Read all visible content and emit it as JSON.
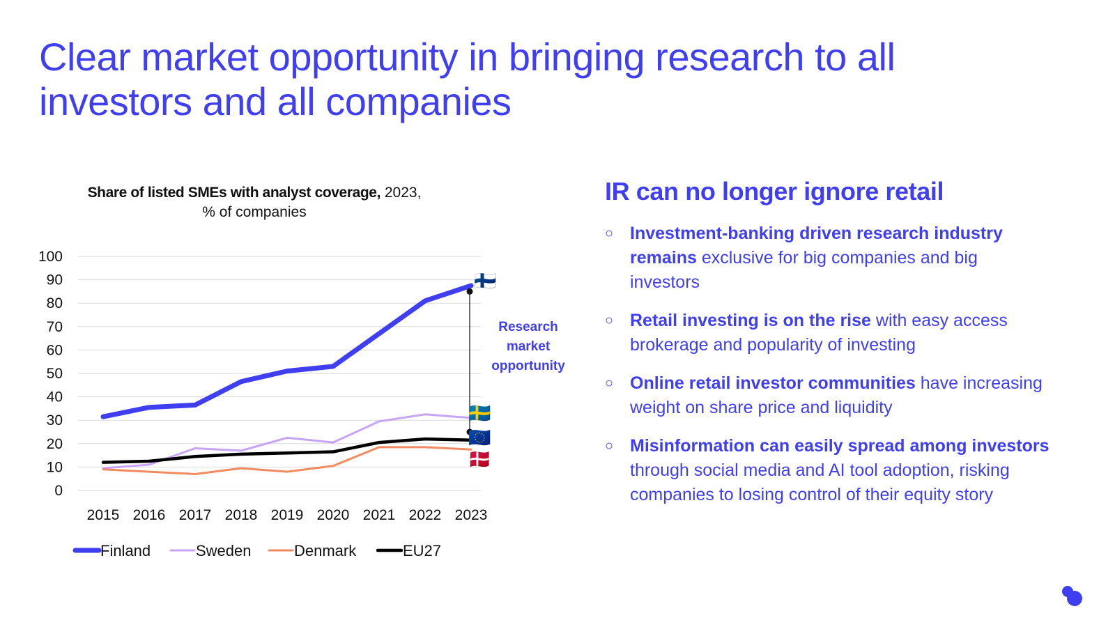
{
  "page": {
    "title": "Clear market opportunity in bringing research to all investors and all companies"
  },
  "chart": {
    "title_bold": "Share of listed SMEs with analyst coverage,",
    "title_regular": " 2023,",
    "subtitle": "% of companies",
    "annotation": [
      "Research",
      "market",
      "opportunity"
    ],
    "flags": {
      "Finland": "🇫🇮",
      "Sweden": "🇸🇪",
      "EU27": "🇪🇺",
      "Denmark": "🇩🇰"
    }
  },
  "chart_data": {
    "type": "line",
    "title": "Share of listed SMEs with analyst coverage, 2023, % of companies",
    "x": [
      "2015",
      "2016",
      "2017",
      "2018",
      "2019",
      "2020",
      "2021",
      "2022",
      "2023"
    ],
    "ylim": [
      0,
      100
    ],
    "yticks": [
      0,
      10,
      20,
      30,
      40,
      50,
      60,
      70,
      80,
      90,
      100
    ],
    "grid": true,
    "legend_position": "bottom",
    "series": [
      {
        "name": "Finland",
        "color": "#3f3ff0",
        "width": "thick",
        "values": [
          31.5,
          35.5,
          36.5,
          46.5,
          51,
          53,
          67,
          81,
          87.5
        ]
      },
      {
        "name": "Sweden",
        "color": "#c7a4f5",
        "width": "thin",
        "values": [
          9.5,
          11,
          18,
          17,
          22.5,
          20.5,
          29.5,
          32.5,
          31
        ]
      },
      {
        "name": "Denmark",
        "color": "#f28a5f",
        "width": "thin",
        "values": [
          9,
          8,
          7,
          9.5,
          8,
          10.5,
          18.5,
          18.5,
          17.5
        ]
      },
      {
        "name": "EU27",
        "color": "#000000",
        "width": "medium",
        "values": [
          12,
          12.5,
          14.5,
          15.5,
          16,
          16.5,
          20.5,
          22,
          21.5
        ]
      }
    ],
    "gap_annotation": {
      "x": "2023",
      "from": 85,
      "to": 25,
      "label": "Research market opportunity"
    }
  },
  "right": {
    "heading": "IR can no longer ignore retail",
    "marker": "○",
    "bullets": [
      {
        "bold": "Investment-banking driven research industry remains",
        "text": " exclusive for big companies and big investors"
      },
      {
        "bold": "Retail investing is on the rise",
        "text": " with easy access brokerage and popularity of investing"
      },
      {
        "bold": "Online retail investor communities",
        "text": " have increasing weight on share price and liquidity"
      },
      {
        "bold": "Misinformation can easily spread among investors",
        "text": " through social media and AI tool adoption, risking companies to losing control of their equity story"
      }
    ]
  },
  "colors": {
    "accent": "#3f3ff0",
    "grid": "#d9d9d9"
  },
  "icons": {
    "logo": "two-dot-logo-icon"
  }
}
